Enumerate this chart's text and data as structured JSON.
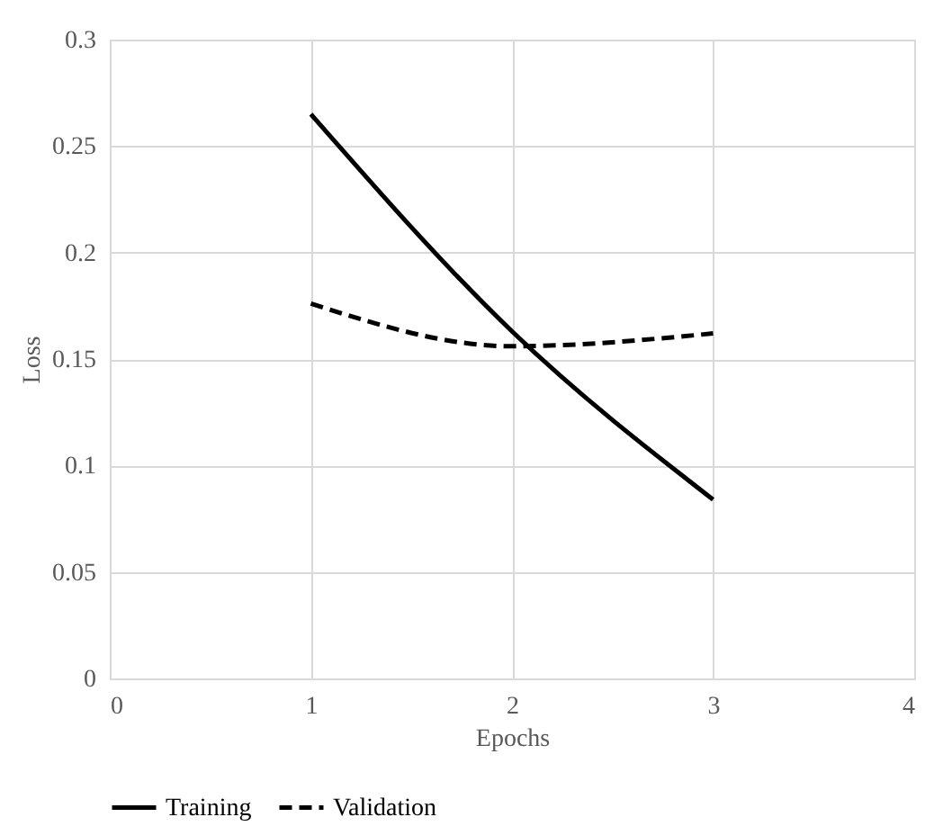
{
  "chart_data": {
    "type": "line",
    "xlabel": "Epochs",
    "ylabel": "Loss",
    "x": [
      1,
      2,
      3
    ],
    "series": [
      {
        "name": "Training",
        "color": "#000000",
        "values": [
          0.265,
          0.163,
          0.084
        ],
        "line_style": "solid"
      },
      {
        "name": "Validation",
        "color": "#000000",
        "values": [
          0.176,
          0.156,
          0.162
        ],
        "line_style": "dashed"
      }
    ],
    "xlim": [
      0,
      4
    ],
    "xticks": [
      0,
      1,
      2,
      3,
      4
    ],
    "ylim": [
      0,
      0.3
    ],
    "yticks": [
      0,
      0.05,
      0.1,
      0.15,
      0.2,
      0.25,
      0.3
    ],
    "grid": true,
    "legend": "bottom",
    "marker": "none"
  }
}
